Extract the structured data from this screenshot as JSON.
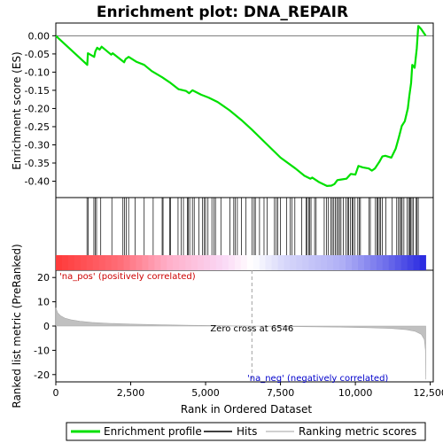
{
  "chart_data": {
    "type": "line",
    "title": "Enrichment plot: DNA_REPAIR",
    "xlabel": "Rank in Ordered Dataset",
    "ylabel_top": "Enrichment score (ES)",
    "ylabel_bottom": "Ranked list metric (PreRanked)",
    "xlim": [
      0,
      12600
    ],
    "x_ticks": [
      0,
      2500,
      5000,
      7500,
      10000,
      12500
    ],
    "x_tick_labels": [
      "0",
      "2,500",
      "5,000",
      "7,500",
      "10,000",
      "12,500"
    ],
    "es_ylim": [
      -0.445,
      0.035
    ],
    "es_ticks": [
      0.0,
      -0.05,
      -0.1,
      -0.15,
      -0.2,
      -0.25,
      -0.3,
      -0.35,
      -0.4
    ],
    "es_tick_labels": [
      "0.00",
      "-0.05",
      "-0.10",
      "-0.15",
      "-0.20",
      "-0.25",
      "-0.30",
      "-0.35",
      "-0.40"
    ],
    "metric_ylim": [
      -23,
      23
    ],
    "metric_ticks": [
      20,
      10,
      0,
      -10,
      -20
    ],
    "metric_tick_labels": [
      "20",
      "10",
      "0",
      "-10",
      "-20"
    ],
    "zero_cross_rank": 6546,
    "zero_cross_label": "Zero cross at 6546",
    "pos_label": "'na_pos' (positively correlated)",
    "neg_label": "'na_neg' (negatively correlated)",
    "dataset_size": 12350,
    "legend": [
      "Enrichment profile",
      "Hits",
      "Ranking metric scores"
    ],
    "colors": {
      "es_line": "#00e000",
      "hits": "#000000",
      "metric": "#c0c0c0",
      "pos_label": "#cc0000",
      "neg_label": "#0000cc",
      "zero_line": "#a0a0a0"
    },
    "es_profile": [
      {
        "x": 0,
        "y": 0.0
      },
      {
        "x": 1050,
        "y": -0.08
      },
      {
        "x": 1070,
        "y": -0.048
      },
      {
        "x": 1280,
        "y": -0.058
      },
      {
        "x": 1320,
        "y": -0.043
      },
      {
        "x": 1380,
        "y": -0.033
      },
      {
        "x": 1460,
        "y": -0.038
      },
      {
        "x": 1530,
        "y": -0.03
      },
      {
        "x": 1850,
        "y": -0.052
      },
      {
        "x": 1900,
        "y": -0.048
      },
      {
        "x": 2280,
        "y": -0.073
      },
      {
        "x": 2330,
        "y": -0.064
      },
      {
        "x": 2430,
        "y": -0.058
      },
      {
        "x": 2700,
        "y": -0.072
      },
      {
        "x": 2950,
        "y": -0.08
      },
      {
        "x": 3200,
        "y": -0.097
      },
      {
        "x": 3550,
        "y": -0.114
      },
      {
        "x": 3800,
        "y": -0.128
      },
      {
        "x": 4100,
        "y": -0.147
      },
      {
        "x": 4350,
        "y": -0.152
      },
      {
        "x": 4450,
        "y": -0.158
      },
      {
        "x": 4560,
        "y": -0.15
      },
      {
        "x": 4850,
        "y": -0.162
      },
      {
        "x": 5100,
        "y": -0.17
      },
      {
        "x": 5400,
        "y": -0.182
      },
      {
        "x": 5800,
        "y": -0.205
      },
      {
        "x": 6200,
        "y": -0.232
      },
      {
        "x": 6546,
        "y": -0.258
      },
      {
        "x": 7000,
        "y": -0.295
      },
      {
        "x": 7500,
        "y": -0.335
      },
      {
        "x": 8000,
        "y": -0.365
      },
      {
        "x": 8300,
        "y": -0.385
      },
      {
        "x": 8500,
        "y": -0.393
      },
      {
        "x": 8560,
        "y": -0.39
      },
      {
        "x": 8800,
        "y": -0.403
      },
      {
        "x": 9050,
        "y": -0.413
      },
      {
        "x": 9200,
        "y": -0.412
      },
      {
        "x": 9300,
        "y": -0.408
      },
      {
        "x": 9400,
        "y": -0.397
      },
      {
        "x": 9550,
        "y": -0.395
      },
      {
        "x": 9700,
        "y": -0.393
      },
      {
        "x": 9850,
        "y": -0.38
      },
      {
        "x": 10000,
        "y": -0.382
      },
      {
        "x": 10100,
        "y": -0.358
      },
      {
        "x": 10250,
        "y": -0.362
      },
      {
        "x": 10450,
        "y": -0.365
      },
      {
        "x": 10550,
        "y": -0.371
      },
      {
        "x": 10650,
        "y": -0.365
      },
      {
        "x": 10800,
        "y": -0.347
      },
      {
        "x": 10900,
        "y": -0.332
      },
      {
        "x": 11000,
        "y": -0.33
      },
      {
        "x": 11200,
        "y": -0.335
      },
      {
        "x": 11350,
        "y": -0.31
      },
      {
        "x": 11450,
        "y": -0.28
      },
      {
        "x": 11550,
        "y": -0.248
      },
      {
        "x": 11650,
        "y": -0.235
      },
      {
        "x": 11750,
        "y": -0.2
      },
      {
        "x": 11800,
        "y": -0.165
      },
      {
        "x": 11860,
        "y": -0.13
      },
      {
        "x": 11900,
        "y": -0.08
      },
      {
        "x": 11980,
        "y": -0.088
      },
      {
        "x": 12050,
        "y": -0.035
      },
      {
        "x": 12100,
        "y": 0.027
      },
      {
        "x": 12200,
        "y": 0.018
      },
      {
        "x": 12350,
        "y": 0.0
      }
    ],
    "hit_ranks": [
      1040,
      1080,
      1270,
      1320,
      1360,
      1500,
      1870,
      2240,
      2290,
      2350,
      2430,
      2650,
      2950,
      3250,
      3550,
      3580,
      3800,
      3830,
      4080,
      4190,
      4260,
      4390,
      4420,
      4470,
      4560,
      4620,
      4780,
      4900,
      4960,
      5000,
      5080,
      5210,
      5280,
      5330,
      5510,
      5810,
      5940,
      5990,
      6060,
      6200,
      6350,
      6550,
      6620,
      6660,
      6800,
      6950,
      7050,
      7300,
      7360,
      7410,
      7500,
      7700,
      7820,
      7880,
      7980,
      8210,
      8350,
      8390,
      8440,
      8480,
      8520,
      8640,
      8690,
      8960,
      9040,
      9090,
      9180,
      9230,
      9280,
      9330,
      9380,
      9430,
      9470,
      9520,
      9600,
      9690,
      9740,
      9780,
      9830,
      9890,
      9920,
      9980,
      10080,
      10130,
      10170,
      10450,
      10500,
      10670,
      10720,
      10750,
      10800,
      10840,
      10900,
      11020,
      11230,
      11380,
      11440,
      11480,
      11530,
      11560,
      11620,
      11730,
      11780,
      11820,
      11850,
      11890,
      11930,
      12030,
      12060,
      12100
    ],
    "metric_curve": [
      {
        "x": 0,
        "y": 7.5
      },
      {
        "x": 60,
        "y": 5.5
      },
      {
        "x": 150,
        "y": 4.3
      },
      {
        "x": 300,
        "y": 3.3
      },
      {
        "x": 500,
        "y": 2.6
      },
      {
        "x": 800,
        "y": 2.0
      },
      {
        "x": 1200,
        "y": 1.5
      },
      {
        "x": 1800,
        "y": 1.1
      },
      {
        "x": 2500,
        "y": 0.8
      },
      {
        "x": 3500,
        "y": 0.5
      },
      {
        "x": 4500,
        "y": 0.3
      },
      {
        "x": 5500,
        "y": 0.15
      },
      {
        "x": 6546,
        "y": 0.0
      },
      {
        "x": 7500,
        "y": -0.15
      },
      {
        "x": 8500,
        "y": -0.3
      },
      {
        "x": 9500,
        "y": -0.45
      },
      {
        "x": 10500,
        "y": -0.7
      },
      {
        "x": 11200,
        "y": -1.0
      },
      {
        "x": 11700,
        "y": -1.5
      },
      {
        "x": 12000,
        "y": -2.2
      },
      {
        "x": 12200,
        "y": -3.4
      },
      {
        "x": 12300,
        "y": -5.5
      },
      {
        "x": 12340,
        "y": -10.0
      },
      {
        "x": 12350,
        "y": -22.0
      }
    ]
  }
}
